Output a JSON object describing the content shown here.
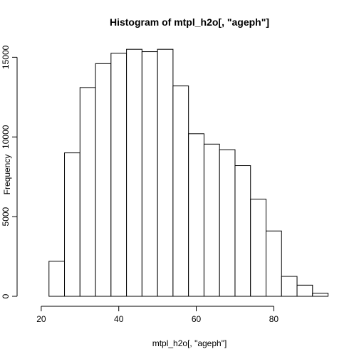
{
  "chart_data": {
    "type": "bar",
    "title": "Histogram of mtpl_h2o[, \"ageph\"]",
    "xlabel": "mtpl_h2o[, \"ageph\"]",
    "ylabel": "Frequency",
    "bins": [
      {
        "x0": 22,
        "x1": 26,
        "count": 2200
      },
      {
        "x0": 26,
        "x1": 30,
        "count": 9000
      },
      {
        "x0": 30,
        "x1": 34,
        "count": 13100
      },
      {
        "x0": 34,
        "x1": 38,
        "count": 14600
      },
      {
        "x0": 38,
        "x1": 42,
        "count": 15250
      },
      {
        "x0": 42,
        "x1": 46,
        "count": 15500
      },
      {
        "x0": 46,
        "x1": 50,
        "count": 15350
      },
      {
        "x0": 50,
        "x1": 54,
        "count": 15500
      },
      {
        "x0": 54,
        "x1": 58,
        "count": 13200
      },
      {
        "x0": 58,
        "x1": 62,
        "count": 10200
      },
      {
        "x0": 62,
        "x1": 66,
        "count": 9550
      },
      {
        "x0": 66,
        "x1": 70,
        "count": 9200
      },
      {
        "x0": 70,
        "x1": 74,
        "count": 8200
      },
      {
        "x0": 74,
        "x1": 78,
        "count": 6100
      },
      {
        "x0": 78,
        "x1": 82,
        "count": 4100
      },
      {
        "x0": 82,
        "x1": 86,
        "count": 1250
      },
      {
        "x0": 86,
        "x1": 90,
        "count": 700
      },
      {
        "x0": 90,
        "x1": 94,
        "count": 200
      }
    ],
    "xlim": [
      18,
      95
    ],
    "ylim": [
      0,
      16000
    ],
    "xticks": [
      20,
      40,
      60,
      80
    ],
    "yticks": [
      0,
      5000,
      10000,
      15000
    ],
    "grid": false,
    "legend": "none"
  }
}
